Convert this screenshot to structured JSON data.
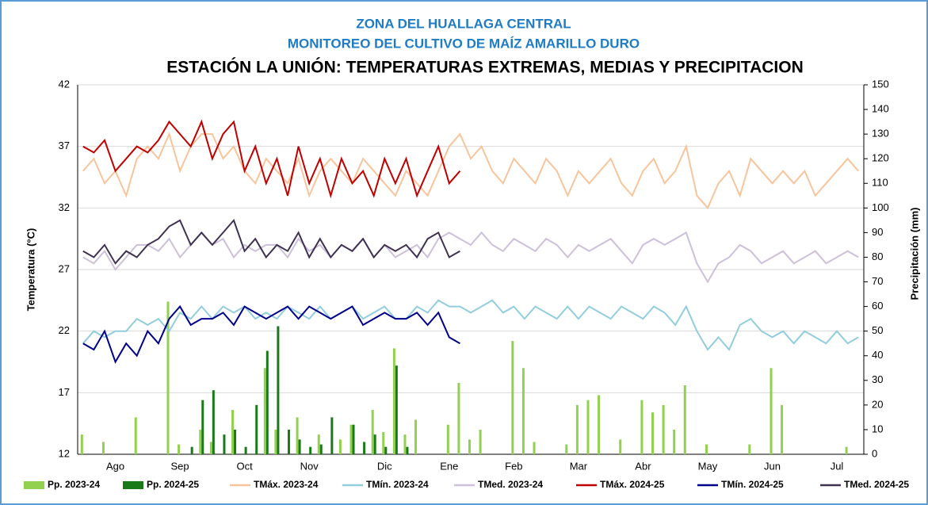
{
  "chart_data": {
    "type": "bar_line",
    "titles": [
      "ZONA DEL HUALLAGA CENTRAL",
      "MONITOREO  DEL CULTIVO DE MAÍZ AMARILLO DURO",
      "ESTACIÓN LA UNIÓN: TEMPERATURAS EXTREMAS, MEDIAS Y PRECIPITACION"
    ],
    "ylabel": "Temperatura (°C)",
    "y2label": "Precipitación  (mm)",
    "ylim": [
      12,
      42
    ],
    "yticks": [
      12,
      17,
      22,
      27,
      32,
      37,
      42
    ],
    "y2lim": [
      0,
      150
    ],
    "y2ticks": [
      0,
      10,
      20,
      30,
      40,
      50,
      60,
      70,
      80,
      90,
      100,
      110,
      120,
      130,
      140,
      150
    ],
    "grid": true,
    "categories": [
      null,
      null,
      null,
      "Ago",
      null,
      null,
      null,
      null,
      null,
      "Sep",
      null,
      null,
      null,
      null,
      null,
      "Oct",
      null,
      null,
      null,
      null,
      null,
      "Nov",
      null,
      null,
      null,
      null,
      null,
      null,
      "Dic",
      null,
      null,
      null,
      null,
      null,
      "Ene",
      null,
      null,
      null,
      null,
      null,
      "Feb",
      null,
      null,
      null,
      null,
      null,
      "Mar",
      null,
      null,
      null,
      null,
      null,
      "Abr",
      null,
      null,
      null,
      null,
      null,
      "May",
      null,
      null,
      null,
      null,
      null,
      "Jun",
      null,
      null,
      null,
      null,
      null,
      "Jul",
      null,
      null
    ],
    "series": [
      {
        "name": "Pp. 2023-24",
        "kind": "bar",
        "axis": "y2",
        "color": "#92d050",
        "values": [
          8,
          null,
          5,
          null,
          null,
          15,
          null,
          null,
          62,
          4,
          null,
          10,
          5,
          null,
          18,
          null,
          null,
          35,
          10,
          null,
          15,
          null,
          8,
          null,
          6,
          12,
          null,
          18,
          9,
          43,
          8,
          14,
          null,
          null,
          12,
          29,
          6,
          10,
          null,
          null,
          46,
          35,
          5,
          null,
          null,
          4,
          20,
          22,
          24,
          null,
          6,
          null,
          22,
          17,
          20,
          10,
          28,
          null,
          4,
          null,
          null,
          null,
          4,
          null,
          35,
          20,
          null,
          null,
          null,
          null,
          null,
          3,
          null
        ]
      },
      {
        "name": "Pp. 2024-25",
        "kind": "bar",
        "axis": "y2",
        "color": "#1a7a1a",
        "values": [
          null,
          null,
          null,
          null,
          null,
          null,
          null,
          null,
          null,
          null,
          3,
          22,
          26,
          8,
          10,
          3,
          20,
          42,
          52,
          10,
          6,
          3,
          4,
          15,
          null,
          12,
          5,
          8,
          3,
          36,
          3,
          null,
          null,
          null,
          null,
          null,
          null,
          null,
          null,
          null,
          null,
          null,
          null,
          null,
          null,
          null,
          null,
          null,
          null,
          null,
          null,
          null,
          null,
          null,
          null,
          null,
          null,
          null,
          null,
          null,
          null,
          null,
          null,
          null,
          null,
          null,
          null,
          null,
          null,
          null,
          null,
          null,
          null
        ]
      },
      {
        "name": "TMáx. 2023-24",
        "kind": "line",
        "color": "#f8c49c",
        "values": [
          35,
          36,
          34,
          35,
          33,
          36,
          37,
          36,
          38,
          35,
          37,
          38,
          38,
          36,
          37,
          35,
          34,
          36,
          35,
          34,
          36,
          33,
          35,
          36,
          35,
          34,
          36,
          35,
          34,
          33,
          35,
          34,
          33,
          35,
          37,
          38,
          36,
          37,
          35,
          34,
          36,
          35,
          34,
          36,
          35,
          33,
          35,
          34,
          35,
          36,
          34,
          33,
          35,
          36,
          34,
          35,
          37,
          33,
          32,
          34,
          35,
          33,
          36,
          35,
          34,
          35,
          34,
          35,
          33,
          34,
          35,
          36,
          35
        ]
      },
      {
        "name": "TMín. 2023-24",
        "kind": "line",
        "color": "#92cddc",
        "values": [
          21,
          22,
          21.5,
          22,
          22,
          23,
          22.5,
          23,
          22,
          23.5,
          23,
          24,
          23,
          24,
          23.5,
          24,
          23,
          23.5,
          23,
          24,
          23.5,
          23,
          24,
          23,
          23.5,
          24,
          23,
          23.5,
          24,
          23,
          23,
          24,
          23.5,
          24.5,
          24,
          24,
          23.5,
          24,
          24.5,
          23.5,
          24,
          23,
          24,
          23.5,
          23,
          24,
          23,
          24,
          23.5,
          23,
          24,
          23.5,
          23,
          24,
          23.5,
          22.5,
          24,
          22,
          20.5,
          21.5,
          20.5,
          22.5,
          23,
          22,
          21.5,
          22,
          21,
          22,
          21.5,
          21,
          22,
          21,
          21.5
        ]
      },
      {
        "name": "TMed. 2023-24",
        "kind": "line",
        "color": "#ccc0da",
        "values": [
          28,
          27.5,
          28.5,
          27,
          28,
          29,
          29,
          28.5,
          29.5,
          28,
          29,
          30,
          29,
          29.5,
          28,
          29,
          28.5,
          29,
          29,
          28,
          29.5,
          28.5,
          29,
          28,
          29,
          28.5,
          29.5,
          28,
          29,
          28,
          28.5,
          29,
          28,
          29.5,
          30,
          29.5,
          29,
          30,
          29,
          28.5,
          29.5,
          29,
          28.5,
          29.5,
          29,
          28,
          29,
          28.5,
          29,
          29.5,
          28.5,
          27.5,
          29,
          29.5,
          29,
          29.5,
          30,
          27.5,
          26,
          27.5,
          28,
          29,
          28.5,
          27.5,
          28,
          28.5,
          27.5,
          28,
          28.5,
          27.5,
          28,
          28.5,
          28
        ]
      },
      {
        "name": "TMáx. 2024-25",
        "kind": "line",
        "color": "#c00000",
        "values": [
          37,
          36.5,
          37.5,
          35,
          36,
          37,
          36.5,
          37.5,
          39,
          38,
          37,
          39,
          36,
          38,
          39,
          35,
          37,
          34,
          36,
          33,
          37,
          34,
          36,
          33,
          36,
          34,
          35,
          33,
          36,
          34,
          36,
          33,
          35,
          37,
          34,
          35,
          null,
          null,
          null,
          null,
          null,
          null,
          null,
          null,
          null,
          null,
          null,
          null,
          null,
          null,
          null,
          null,
          null,
          null,
          null,
          null,
          null,
          null,
          null,
          null,
          null,
          null,
          null,
          null,
          null,
          null,
          null,
          null,
          null,
          null,
          null,
          null,
          null
        ]
      },
      {
        "name": "TMín. 2024-25",
        "kind": "line",
        "color": "#00008b",
        "values": [
          21,
          20.5,
          22,
          19.5,
          21,
          20,
          22,
          21,
          23,
          24,
          22.5,
          23,
          23,
          23.5,
          22.5,
          24,
          23.5,
          23,
          23.5,
          24,
          23,
          24,
          23.5,
          23,
          23.5,
          24,
          22.5,
          23,
          23.5,
          23,
          23,
          23.5,
          22.5,
          23.5,
          21.5,
          21,
          null,
          null,
          null,
          null,
          null,
          null,
          null,
          null,
          null,
          null,
          null,
          null,
          null,
          null,
          null,
          null,
          null,
          null,
          null,
          null,
          null,
          null,
          null,
          null,
          null,
          null,
          null,
          null,
          null,
          null,
          null,
          null,
          null,
          null,
          null,
          null,
          null
        ]
      },
      {
        "name": "TMed. 2024-25",
        "kind": "line",
        "color": "#3f3151",
        "values": [
          28.5,
          28,
          29,
          27.5,
          28.5,
          28,
          29,
          29.5,
          30.5,
          31,
          29,
          30,
          29,
          30,
          31,
          28.5,
          29.5,
          28,
          29,
          28.5,
          30,
          28,
          29.5,
          28,
          29,
          28.5,
          29.5,
          28,
          29,
          28.5,
          29,
          28,
          29.5,
          30,
          28,
          28.5,
          null,
          null,
          null,
          null,
          null,
          null,
          null,
          null,
          null,
          null,
          null,
          null,
          null,
          null,
          null,
          null,
          null,
          null,
          null,
          null,
          null,
          null,
          null,
          null,
          null,
          null,
          null,
          null,
          null,
          null,
          null,
          null,
          null,
          null,
          null,
          null,
          null
        ]
      }
    ]
  }
}
